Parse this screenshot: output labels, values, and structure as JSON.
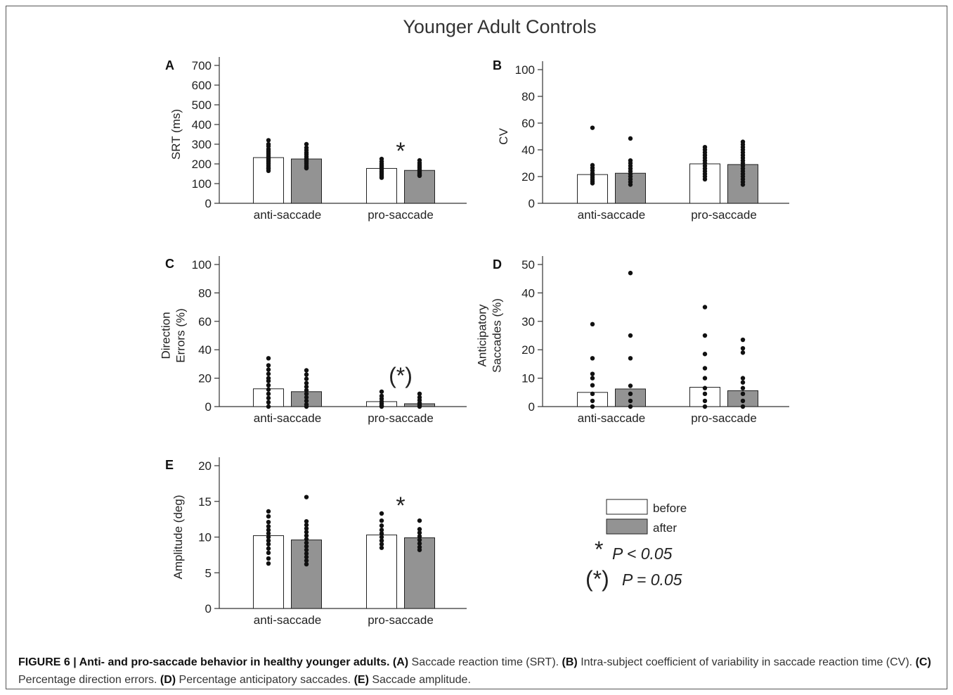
{
  "figure": {
    "title": "Younger Adult Controls",
    "caption": {
      "figure_label": "FIGURE 6 | Anti- and pro-saccade behavior in healthy younger adults.",
      "parts": [
        {
          "tag": "(A)",
          "text": " Saccade reaction time (SRT). "
        },
        {
          "tag": "(B)",
          "text": " Intra-subject coefficient of variability in saccade reaction time (CV). "
        },
        {
          "tag": "(C)",
          "text": " Percentage direction errors. "
        },
        {
          "tag": "(D)",
          "text": " Percentage anticipatory saccades. "
        },
        {
          "tag": "(E)",
          "text": " Saccade amplitude."
        }
      ]
    }
  },
  "legend": {
    "before_label": "before",
    "after_label": "after",
    "before_color": "#ffffff",
    "after_color": "#939393",
    "sig1_symbol": "*",
    "sig1_text": "P < 0.05",
    "sig2_symbol": "(*)",
    "sig2_text": "P = 0.05"
  },
  "colors": {
    "before": "#ffffff",
    "after": "#939393",
    "dots": "#111111",
    "axis": "#333333"
  },
  "chart_data": [
    {
      "panel": "A",
      "type": "bar",
      "ylabel": [
        "SRT (ms)"
      ],
      "ylim": [
        0,
        700
      ],
      "yticks": [
        0,
        100,
        200,
        300,
        400,
        500,
        600,
        700
      ],
      "categories": [
        "anti-saccade",
        "pro-saccade"
      ],
      "series": [
        {
          "name": "before",
          "values": [
            232,
            177
          ]
        },
        {
          "name": "after",
          "values": [
            225,
            167
          ]
        }
      ],
      "points": [
        [
          [
            320,
            300,
            290,
            275,
            265,
            255,
            245,
            235,
            225,
            218,
            210,
            200,
            190,
            180,
            175,
            165
          ],
          [
            300,
            282,
            270,
            258,
            248,
            238,
            228,
            218,
            210,
            200,
            190,
            182,
            178
          ]
        ],
        [
          [
            225,
            212,
            200,
            192,
            185,
            178,
            170,
            160,
            152,
            145,
            138,
            130
          ],
          [
            218,
            205,
            195,
            188,
            180,
            172,
            165,
            158,
            150,
            143,
            140
          ]
        ]
      ],
      "significance": [
        "",
        "*"
      ]
    },
    {
      "panel": "B",
      "type": "bar",
      "ylabel": [
        "CV"
      ],
      "ylim": [
        0,
        100
      ],
      "yticks": [
        0,
        20,
        40,
        60,
        80,
        100
      ],
      "categories": [
        "anti-saccade",
        "pro-saccade"
      ],
      "series": [
        {
          "name": "before",
          "values": [
            21.5,
            29.5
          ]
        },
        {
          "name": "after",
          "values": [
            22.5,
            29
          ]
        }
      ],
      "points": [
        [
          [
            56.5,
            28.5,
            26.5,
            24.5,
            22.5,
            21,
            19.5,
            18,
            16.5,
            15
          ],
          [
            48.5,
            32,
            30,
            28,
            26,
            24,
            22,
            20,
            18,
            16,
            14
          ]
        ],
        [
          [
            42,
            40,
            38,
            36,
            34,
            32,
            30,
            28,
            26,
            24,
            22,
            20,
            18
          ],
          [
            46,
            44,
            42,
            40,
            38,
            36,
            34,
            32,
            30,
            28,
            26,
            24,
            22,
            20,
            18,
            16,
            14
          ]
        ]
      ],
      "significance": [
        "",
        ""
      ]
    },
    {
      "panel": "C",
      "type": "bar",
      "ylabel": [
        "Direction",
        "Errors (%)"
      ],
      "ylim": [
        0,
        100
      ],
      "yticks": [
        0,
        20,
        40,
        60,
        80,
        100
      ],
      "categories": [
        "anti-saccade",
        "pro-saccade"
      ],
      "series": [
        {
          "name": "before",
          "values": [
            12.5,
            3.5
          ]
        },
        {
          "name": "after",
          "values": [
            10.5,
            2
          ]
        }
      ],
      "points": [
        [
          [
            34,
            29,
            26,
            23,
            20,
            18,
            15,
            12,
            9,
            6,
            3,
            0
          ],
          [
            25.5,
            22.5,
            19.5,
            16.5,
            14,
            11.5,
            9,
            6.5,
            4,
            1.5,
            0
          ]
        ],
        [
          [
            10.5,
            7.5,
            5.5,
            3.5,
            2,
            0.5,
            0
          ],
          [
            9,
            6.5,
            4.5,
            2.5,
            1,
            0
          ]
        ]
      ],
      "significance": [
        "",
        "(*)"
      ]
    },
    {
      "panel": "D",
      "type": "bar",
      "ylabel": [
        "Anticipatory",
        "Saccades (%)"
      ],
      "ylim": [
        0,
        50
      ],
      "yticks": [
        0,
        10,
        20,
        30,
        40,
        50
      ],
      "categories": [
        "anti-saccade",
        "pro-saccade"
      ],
      "series": [
        {
          "name": "before",
          "values": [
            5,
            6.8
          ]
        },
        {
          "name": "after",
          "values": [
            6.2,
            5.6
          ]
        }
      ],
      "points": [
        [
          [
            29,
            17,
            11.5,
            10,
            7.5,
            4.5,
            2,
            0
          ],
          [
            47,
            25,
            17,
            7.3,
            4.5,
            2,
            0
          ]
        ],
        [
          [
            35,
            25,
            18.5,
            13.5,
            10,
            6.5,
            4.5,
            2,
            0
          ],
          [
            23.5,
            20.5,
            19,
            10,
            8.5,
            6.5,
            4.5,
            2,
            0
          ]
        ]
      ],
      "significance": [
        "",
        ""
      ]
    },
    {
      "panel": "E",
      "type": "bar",
      "ylabel": [
        "Amplitude (deg)"
      ],
      "ylim": [
        0,
        20
      ],
      "yticks": [
        0,
        5,
        10,
        15,
        20
      ],
      "categories": [
        "anti-saccade",
        "pro-saccade"
      ],
      "series": [
        {
          "name": "before",
          "values": [
            10.2,
            10.3
          ]
        },
        {
          "name": "after",
          "values": [
            9.6,
            9.9
          ]
        }
      ],
      "points": [
        [
          [
            13.6,
            12.9,
            12.1,
            11.5,
            11,
            10.5,
            10,
            9.5,
            9,
            8.4,
            7.8,
            7,
            6.3
          ],
          [
            15.6,
            12.2,
            11.7,
            11.2,
            10.7,
            10.2,
            9.7,
            9.2,
            8.7,
            8.2,
            7.7,
            7.2,
            6.7,
            6.2
          ]
        ],
        [
          [
            13.3,
            12.3,
            11.6,
            11,
            10.5,
            10,
            9.5,
            9,
            8.5
          ],
          [
            12.3,
            11.1,
            10.6,
            10.1,
            9.6,
            9.1,
            8.6,
            8.2
          ]
        ]
      ],
      "significance": [
        "",
        "*"
      ]
    }
  ]
}
